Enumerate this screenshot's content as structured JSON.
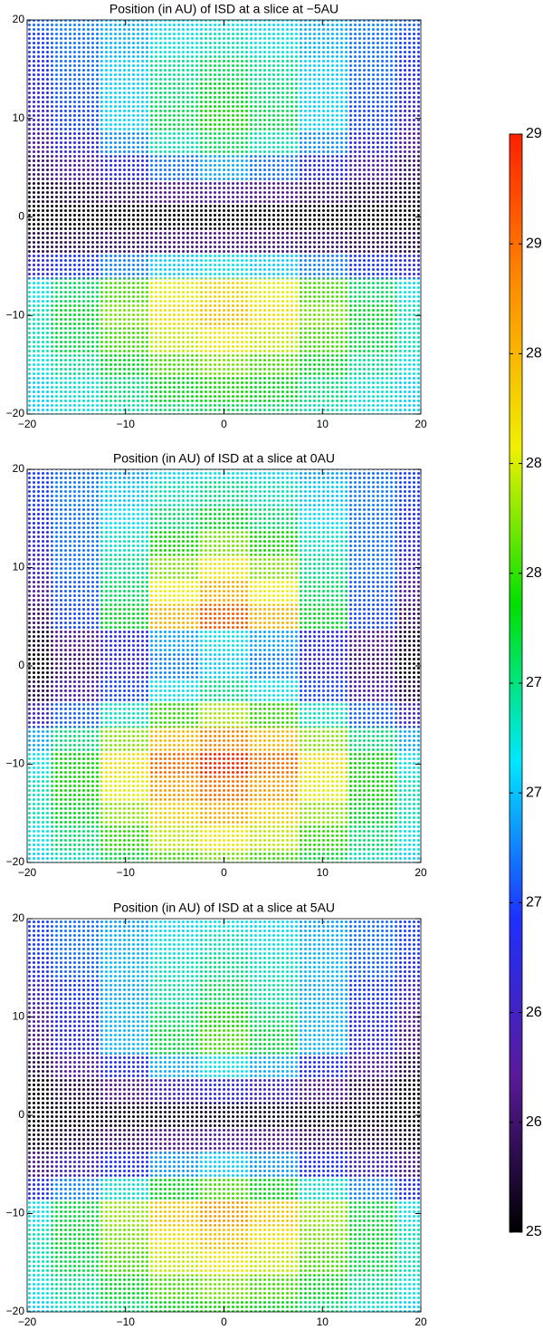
{
  "chart_data": [
    {
      "type": "scatter",
      "title": "Position (in AU) of ISD at a slice at −5AU",
      "x": [
        -20,
        -15,
        -10,
        -5,
        0,
        5,
        10,
        15,
        20
      ],
      "y": [
        20,
        17.5,
        15,
        12.5,
        10,
        7.5,
        5,
        2.5,
        0,
        -2.5,
        -5,
        -7.5,
        -10,
        -12.5,
        -15,
        -17.5,
        -20
      ],
      "values": [
        [
          26.6,
          26.7,
          26.82,
          26.94,
          27.0,
          26.94,
          26.82,
          26.7,
          26.6
        ],
        [
          26.5,
          26.65,
          26.83,
          27.01,
          27.1,
          27.01,
          26.83,
          26.65,
          26.5
        ],
        [
          26.4,
          26.63,
          26.9,
          27.17,
          27.3,
          27.17,
          26.9,
          26.63,
          26.4
        ],
        [
          26.3,
          26.58,
          26.91,
          27.24,
          27.4,
          27.24,
          26.91,
          26.58,
          26.3
        ],
        [
          26.2,
          26.53,
          26.92,
          27.31,
          27.5,
          27.31,
          26.92,
          26.53,
          26.2
        ],
        [
          26.0,
          26.33,
          26.72,
          27.11,
          27.3,
          27.11,
          26.72,
          26.33,
          26.0
        ],
        [
          25.8,
          26.05,
          26.35,
          26.65,
          26.8,
          26.65,
          26.35,
          26.05,
          25.8
        ],
        [
          25.6,
          25.7,
          25.82,
          25.94,
          26.0,
          25.94,
          25.82,
          25.7,
          25.6
        ],
        [
          25.5,
          25.5,
          25.5,
          25.5,
          25.5,
          25.5,
          25.5,
          25.5,
          25.5
        ],
        [
          25.7,
          25.75,
          25.81,
          25.87,
          25.9,
          25.87,
          25.81,
          25.75,
          25.7
        ],
        [
          26.3,
          26.48,
          26.69,
          26.9,
          27.0,
          26.9,
          26.69,
          26.48,
          26.3
        ],
        [
          27.0,
          27.28,
          27.61,
          27.94,
          28.1,
          27.94,
          27.61,
          27.28,
          27.0
        ],
        [
          27.1,
          27.38,
          27.71,
          28.04,
          28.2,
          28.04,
          27.71,
          27.38,
          27.1
        ],
        [
          27.1,
          27.33,
          27.6,
          27.87,
          28.0,
          27.87,
          27.6,
          27.33,
          27.1
        ],
        [
          27.0,
          27.18,
          27.39,
          27.6,
          27.7,
          27.6,
          27.39,
          27.18,
          27.0
        ],
        [
          26.9,
          27.05,
          27.23,
          27.41,
          27.5,
          27.41,
          27.23,
          27.05,
          26.9
        ],
        [
          26.9,
          27.0,
          27.12,
          27.24,
          27.3,
          27.24,
          27.12,
          27.0,
          26.9
        ]
      ],
      "xlim": [
        -20,
        20
      ],
      "ylim": [
        -20,
        20
      ],
      "xticks": [
        {
          "value": -20,
          "label": "−20"
        },
        {
          "value": -10,
          "label": "−10"
        },
        0,
        10,
        20
      ],
      "yticks": [
        {
          "value": -20,
          "label": "−20"
        },
        {
          "value": -10,
          "label": "−10"
        },
        0,
        10,
        20
      ]
    },
    {
      "type": "scatter",
      "title": "Position (in AU) of ISD at a slice at 0AU",
      "x": [
        -20,
        -15,
        -10,
        -5,
        0,
        5,
        10,
        15,
        20
      ],
      "y": [
        20,
        17.5,
        15,
        12.5,
        10,
        7.5,
        5,
        2.5,
        0,
        -2.5,
        -5,
        -7.5,
        -10,
        -12.5,
        -15,
        -17.5,
        -20
      ],
      "values": [
        [
          26.5,
          26.63,
          26.78,
          26.93,
          27.0,
          26.93,
          26.78,
          26.63,
          26.5
        ],
        [
          26.5,
          26.68,
          26.89,
          27.1,
          27.2,
          27.1,
          26.89,
          26.68,
          26.5
        ],
        [
          26.4,
          26.65,
          26.95,
          27.25,
          27.4,
          27.25,
          26.95,
          26.65,
          26.4
        ],
        [
          26.3,
          26.65,
          27.07,
          27.49,
          27.7,
          27.49,
          27.07,
          26.65,
          26.3
        ],
        [
          26.2,
          26.65,
          27.19,
          27.73,
          28.0,
          27.73,
          27.19,
          26.65,
          26.2
        ],
        [
          26.0,
          26.58,
          27.27,
          27.96,
          28.3,
          27.96,
          27.27,
          26.58,
          26.0
        ],
        [
          25.8,
          26.53,
          27.4,
          28.27,
          28.7,
          28.27,
          27.4,
          26.53,
          25.8
        ],
        [
          25.6,
          25.95,
          26.37,
          26.79,
          27.0,
          26.79,
          26.37,
          25.95,
          25.6
        ],
        [
          25.5,
          25.85,
          26.27,
          26.69,
          26.9,
          26.69,
          26.27,
          25.85,
          25.5
        ],
        [
          25.7,
          26.08,
          26.53,
          26.98,
          27.2,
          26.98,
          26.53,
          26.08,
          25.7
        ],
        [
          26.2,
          26.6,
          27.08,
          27.56,
          27.8,
          27.56,
          27.08,
          26.6,
          26.2
        ],
        [
          26.8,
          27.23,
          27.74,
          28.25,
          28.5,
          28.25,
          27.74,
          27.23,
          26.8
        ],
        [
          27.0,
          27.48,
          28.05,
          28.62,
          28.9,
          28.62,
          28.05,
          27.48,
          27.0
        ],
        [
          27.1,
          27.48,
          27.93,
          28.38,
          28.6,
          28.38,
          27.93,
          27.48,
          27.1
        ],
        [
          27.1,
          27.4,
          27.76,
          28.12,
          28.3,
          28.12,
          27.76,
          27.4,
          27.1
        ],
        [
          27.0,
          27.25,
          27.55,
          27.85,
          28.0,
          27.85,
          27.55,
          27.25,
          27.0
        ],
        [
          26.9,
          27.1,
          27.34,
          27.58,
          27.7,
          27.58,
          27.34,
          27.1,
          26.9
        ]
      ],
      "xlim": [
        -20,
        20
      ],
      "ylim": [
        -20,
        20
      ],
      "xticks": [
        {
          "value": -20,
          "label": "−20"
        },
        {
          "value": -10,
          "label": "−10"
        },
        0,
        10,
        20
      ],
      "yticks": [
        {
          "value": -20,
          "label": "−20"
        },
        {
          "value": -10,
          "label": "−10"
        },
        0,
        10,
        20
      ]
    },
    {
      "type": "scatter",
      "title": "Position (in AU) of ISD at a slice at 5AU",
      "x": [
        -20,
        -15,
        -10,
        -5,
        0,
        5,
        10,
        15,
        20
      ],
      "y": [
        20,
        17.5,
        15,
        12.5,
        10,
        7.5,
        5,
        2.5,
        0,
        -2.5,
        -5,
        -7.5,
        -10,
        -12.5,
        -15,
        -17.5,
        -20
      ],
      "values": [
        [
          26.5,
          26.63,
          26.78,
          26.93,
          27.0,
          26.93,
          26.78,
          26.63,
          26.5
        ],
        [
          26.5,
          26.65,
          26.83,
          27.01,
          27.1,
          27.01,
          26.83,
          26.65,
          26.5
        ],
        [
          26.4,
          26.6,
          26.84,
          27.08,
          27.2,
          27.08,
          26.84,
          26.6,
          26.4
        ],
        [
          26.2,
          26.48,
          26.81,
          27.14,
          27.3,
          27.14,
          26.81,
          26.48,
          26.2
        ],
        [
          26.0,
          26.38,
          26.83,
          27.28,
          27.5,
          27.28,
          26.83,
          26.38,
          26.0
        ],
        [
          25.9,
          26.33,
          26.84,
          27.35,
          27.6,
          27.35,
          26.84,
          26.33,
          25.9
        ],
        [
          25.7,
          26.03,
          26.42,
          26.81,
          27.0,
          26.81,
          26.42,
          26.03,
          25.7
        ],
        [
          25.5,
          25.7,
          25.94,
          26.18,
          26.3,
          26.18,
          25.94,
          25.7,
          25.5
        ],
        [
          25.5,
          25.53,
          25.56,
          25.59,
          25.6,
          25.59,
          25.56,
          25.53,
          25.5
        ],
        [
          25.6,
          25.7,
          25.82,
          25.94,
          26.0,
          25.94,
          25.82,
          25.7,
          25.6
        ],
        [
          25.9,
          26.15,
          26.45,
          26.75,
          26.9,
          26.75,
          26.45,
          26.15,
          25.9
        ],
        [
          26.4,
          26.7,
          27.06,
          27.42,
          27.6,
          27.42,
          27.06,
          26.7,
          26.4
        ],
        [
          27.0,
          27.35,
          27.77,
          28.19,
          28.4,
          28.19,
          27.77,
          27.35,
          27.0
        ],
        [
          27.1,
          27.38,
          27.71,
          28.04,
          28.2,
          28.04,
          27.71,
          27.38,
          27.1
        ],
        [
          27.1,
          27.33,
          27.6,
          27.87,
          28.0,
          27.87,
          27.6,
          27.33,
          27.1
        ],
        [
          27.0,
          27.18,
          27.39,
          27.6,
          27.7,
          27.6,
          27.39,
          27.18,
          27.0
        ],
        [
          26.9,
          27.05,
          27.23,
          27.41,
          27.5,
          27.41,
          27.23,
          27.05,
          26.9
        ]
      ],
      "xlim": [
        -20,
        20
      ],
      "ylim": [
        -20,
        20
      ],
      "xticks": [
        {
          "value": -20,
          "label": "−20"
        },
        {
          "value": -10,
          "label": "−10"
        },
        0,
        10,
        20
      ],
      "yticks": [
        {
          "value": -20,
          "label": "−20"
        },
        {
          "value": -10,
          "label": "−10"
        },
        0,
        10,
        20
      ]
    }
  ],
  "colorbar": {
    "lim": [
      25.46,
      28.96
    ],
    "ticks": [
      {
        "value": 25.46,
        "label": "25"
      },
      {
        "value": 25.81,
        "label": "26"
      },
      {
        "value": 26.16,
        "label": "26"
      },
      {
        "value": 26.51,
        "label": "27"
      },
      {
        "value": 26.86,
        "label": "27"
      },
      {
        "value": 27.21,
        "label": "27"
      },
      {
        "value": 27.56,
        "label": "28"
      },
      {
        "value": 27.91,
        "label": "28"
      },
      {
        "value": 28.26,
        "label": "28"
      },
      {
        "value": 28.61,
        "label": "29"
      },
      {
        "value": 28.96,
        "label": "29"
      }
    ],
    "colormap": [
      "#000000",
      "#5a1a9a",
      "#1e30ff",
      "#00e8ff",
      "#00e000",
      "#f0f000",
      "#ff9000",
      "#ff2000"
    ]
  }
}
